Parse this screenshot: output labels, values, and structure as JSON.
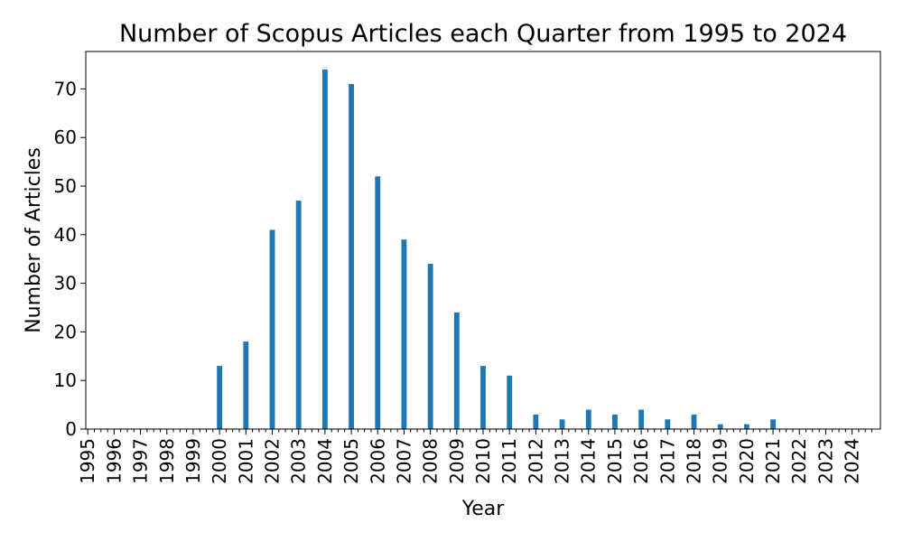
{
  "chart_data": {
    "type": "bar",
    "title": "Number of Scopus Articles each Quarter from 1995 to 2024",
    "xlabel": "Year",
    "ylabel": "Number of Articles",
    "ylim": [
      0,
      77.7
    ],
    "yticks": [
      0,
      10,
      20,
      30,
      40,
      50,
      60,
      70
    ],
    "year_labels": [
      "1995",
      "1996",
      "1997",
      "1998",
      "1999",
      "2000",
      "2001",
      "2002",
      "2003",
      "2004",
      "2005",
      "2006",
      "2007",
      "2008",
      "2009",
      "2010",
      "2011",
      "2012",
      "2013",
      "2014",
      "2015",
      "2016",
      "2017",
      "2018",
      "2019",
      "2020",
      "2021",
      "2022",
      "2023",
      "2024"
    ],
    "quarters_per_year": 4,
    "values": [
      0,
      0,
      0,
      0,
      0,
      0,
      0,
      0,
      0,
      0,
      0,
      0,
      0,
      0,
      0,
      0,
      0,
      0,
      0,
      0,
      13,
      0,
      0,
      0,
      18,
      0,
      0,
      0,
      41,
      0,
      0,
      0,
      47,
      0,
      0,
      0,
      74,
      0,
      0,
      0,
      71,
      0,
      0,
      0,
      52,
      0,
      0,
      0,
      39,
      0,
      0,
      0,
      34,
      0,
      0,
      0,
      24,
      0,
      0,
      0,
      13,
      0,
      0,
      0,
      11,
      0,
      0,
      0,
      3,
      0,
      0,
      0,
      2,
      0,
      0,
      0,
      4,
      0,
      0,
      0,
      3,
      0,
      0,
      0,
      4,
      0,
      0,
      0,
      2,
      0,
      0,
      0,
      3,
      0,
      0,
      0,
      1,
      0,
      0,
      0,
      1,
      0,
      0,
      0,
      2,
      0,
      0,
      0,
      0,
      0,
      0,
      0,
      0,
      0,
      0,
      0,
      0,
      0,
      0,
      0
    ],
    "bar_color": "#1f77b4",
    "grid": false,
    "legend": "none"
  }
}
